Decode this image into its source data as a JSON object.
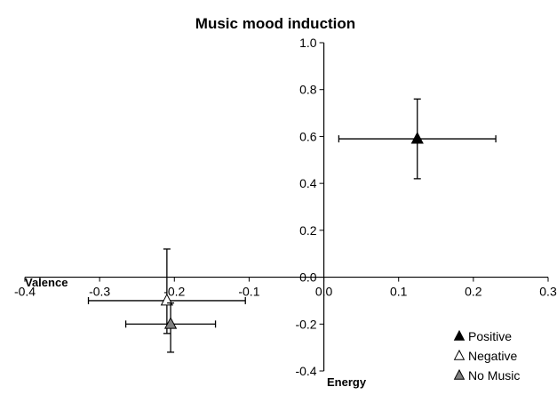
{
  "chart_data": {
    "type": "scatter",
    "title": "Music mood induction",
    "xlabel": "Valence",
    "ylabel": "Energy",
    "xlim": [
      -0.4,
      0.3
    ],
    "ylim": [
      -0.4,
      1.0
    ],
    "x_ticks": [
      -0.4,
      -0.3,
      -0.2,
      -0.1,
      0.0,
      0.1,
      0.2,
      0.3
    ],
    "x_tick_labels": [
      "-0.4",
      "-0.3",
      "-0.2",
      "-0.1",
      "0.0",
      "0.1",
      "0.2",
      "0.3"
    ],
    "y_ticks": [
      -0.4,
      -0.2,
      0.0,
      0.2,
      0.4,
      0.6,
      0.8,
      1.0
    ],
    "y_tick_labels": [
      "-0.4",
      "-0.2",
      "0.0",
      "0.2",
      "0.4",
      "0.6",
      "0.8",
      "1.0"
    ],
    "grid": false,
    "legend_position": "bottom-right",
    "series": [
      {
        "name": "Positive",
        "marker": "filled-triangle",
        "color": "#000000",
        "x": 0.125,
        "y": 0.59,
        "x_err": [
          0.105,
          0.105
        ],
        "y_err": [
          0.17,
          0.17
        ]
      },
      {
        "name": "Negative",
        "marker": "open-triangle",
        "color": "#ffffff",
        "x": -0.21,
        "y": -0.1,
        "x_err": [
          0.105,
          0.105
        ],
        "y_err": [
          0.14,
          0.22
        ]
      },
      {
        "name": "No Music",
        "marker": "gray-triangle",
        "color": "#808080",
        "x": -0.205,
        "y": -0.2,
        "x_err": [
          0.06,
          0.06
        ],
        "y_err": [
          0.12,
          0.09
        ]
      }
    ]
  }
}
